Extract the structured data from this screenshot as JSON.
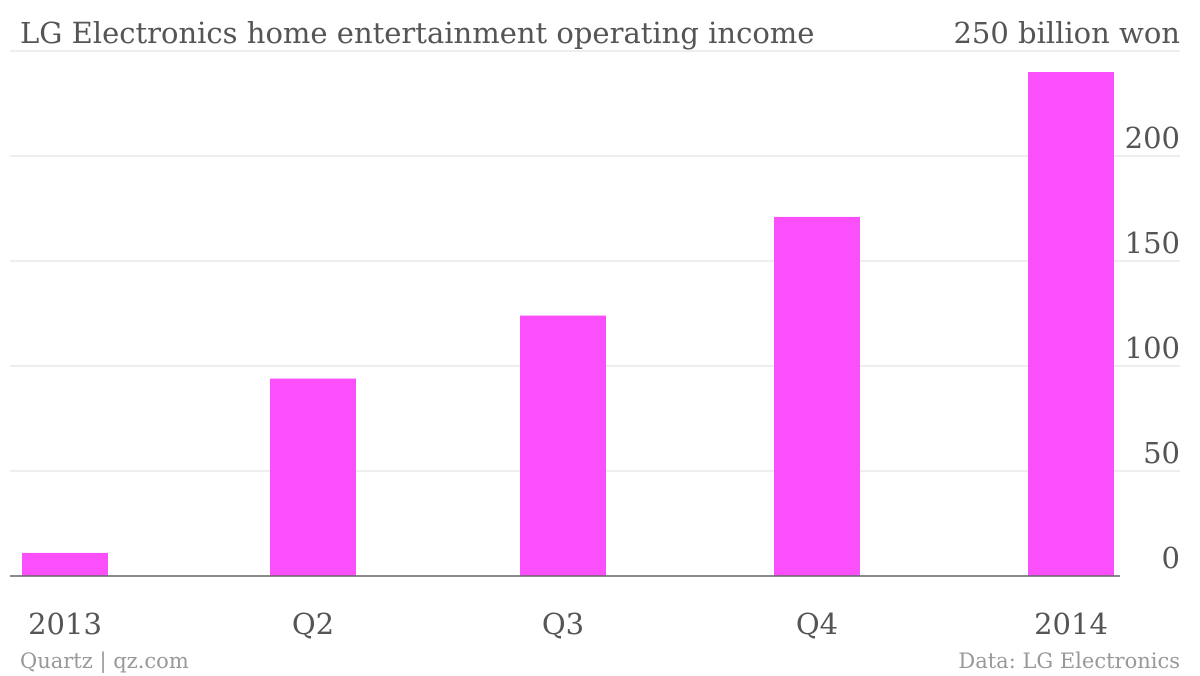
{
  "chart_data": {
    "type": "bar",
    "title": "LG Electronics home entertainment operating income",
    "unit_label": "250 billion won",
    "categories": [
      "2013",
      "Q2",
      "Q3",
      "Q4",
      "2014"
    ],
    "values": [
      11,
      94,
      124,
      171,
      240
    ],
    "ylim": [
      0,
      250
    ],
    "yticks": [
      0,
      50,
      100,
      150,
      200
    ],
    "y_axis_position": "right",
    "grid": true,
    "bar_color": "#fb4ffb",
    "source": "Data: LG Electronics",
    "credit": "Quartz | qz.com"
  }
}
